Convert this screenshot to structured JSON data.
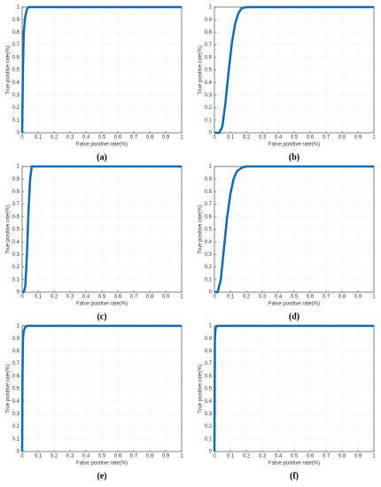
{
  "chart_data": [
    {
      "type": "line",
      "caption": "(a)",
      "xlabel": "False positive rate(%)",
      "ylabel": "True positive rate(%)",
      "color": "#0e6bb5",
      "x": [
        0,
        0.005,
        0.01,
        0.02,
        0.03,
        0.04,
        0.05,
        1
      ],
      "values": [
        0,
        0.5,
        0.8,
        0.93,
        0.98,
        1,
        1,
        1
      ],
      "xlim": [
        0,
        1
      ],
      "ylim": [
        0,
        1
      ],
      "xticks": [
        0,
        0.1,
        0.2,
        0.3,
        0.4,
        0.5,
        0.6,
        0.7,
        0.8,
        0.9,
        1
      ],
      "yticks": [
        0,
        0.1,
        0.2,
        0.3,
        0.4,
        0.5,
        0.6,
        0.7,
        0.8,
        0.9,
        1
      ],
      "grid": true
    },
    {
      "type": "line",
      "caption": "(b)",
      "xlabel": "False positive rate(%)",
      "ylabel": "True positive rate(%)",
      "color": "#0e6bb5",
      "x": [
        0,
        0.03,
        0.05,
        0.07,
        0.09,
        0.11,
        0.13,
        0.15,
        0.17,
        0.2,
        1
      ],
      "values": [
        0,
        0,
        0.05,
        0.25,
        0.5,
        0.72,
        0.87,
        0.95,
        0.99,
        1,
        1
      ],
      "xlim": [
        0,
        1
      ],
      "ylim": [
        0,
        1
      ],
      "xticks": [
        0,
        0.1,
        0.2,
        0.3,
        0.4,
        0.5,
        0.6,
        0.7,
        0.8,
        0.9,
        1
      ],
      "yticks": [
        0,
        0.1,
        0.2,
        0.3,
        0.4,
        0.5,
        0.6,
        0.7,
        0.8,
        0.9,
        1
      ],
      "grid": true
    },
    {
      "type": "line",
      "caption": "(c)",
      "xlabel": "False positive rate(%)",
      "ylabel": "True positive rate(%)",
      "color": "#0e6bb5",
      "x": [
        0,
        0.01,
        0.02,
        0.03,
        0.04,
        0.05,
        0.06,
        1
      ],
      "values": [
        0,
        0,
        0.05,
        0.3,
        0.65,
        0.9,
        1,
        1
      ],
      "xlim": [
        0,
        1
      ],
      "ylim": [
        0,
        1
      ],
      "xticks": [
        0,
        0.1,
        0.2,
        0.3,
        0.4,
        0.5,
        0.6,
        0.7,
        0.8,
        0.9,
        1
      ],
      "yticks": [
        0,
        0.1,
        0.2,
        0.3,
        0.4,
        0.5,
        0.6,
        0.7,
        0.8,
        0.9,
        1
      ],
      "grid": true
    },
    {
      "type": "line",
      "caption": "(d)",
      "xlabel": "False positive rate(%)",
      "ylabel": "True positive rate(%)",
      "color": "#0e6bb5",
      "x": [
        0,
        0.02,
        0.04,
        0.06,
        0.08,
        0.1,
        0.12,
        0.14,
        0.17,
        0.2,
        1
      ],
      "values": [
        0,
        0,
        0.1,
        0.35,
        0.6,
        0.78,
        0.9,
        0.96,
        0.99,
        1,
        1
      ],
      "xlim": [
        0,
        1
      ],
      "ylim": [
        0,
        1
      ],
      "xticks": [
        0,
        0.1,
        0.2,
        0.3,
        0.4,
        0.5,
        0.6,
        0.7,
        0.8,
        0.9,
        1
      ],
      "yticks": [
        0,
        0.1,
        0.2,
        0.3,
        0.4,
        0.5,
        0.6,
        0.7,
        0.8,
        0.9,
        1
      ],
      "grid": true
    },
    {
      "type": "line",
      "caption": "(e)",
      "xlabel": "False positive rate(%)",
      "ylabel": "True positive rate(%)",
      "color": "#0e6bb5",
      "x": [
        0,
        0.002,
        0.005,
        0.01,
        0.02,
        0.03,
        1
      ],
      "values": [
        0,
        0.6,
        0.9,
        0.96,
        0.99,
        1,
        1
      ],
      "xlim": [
        0,
        1
      ],
      "ylim": [
        0,
        1
      ],
      "xticks": [
        0,
        0.1,
        0.2,
        0.3,
        0.4,
        0.5,
        0.6,
        0.7,
        0.8,
        0.9,
        1
      ],
      "yticks": [
        0,
        0.1,
        0.2,
        0.3,
        0.4,
        0.5,
        0.6,
        0.7,
        0.8,
        0.9,
        1
      ],
      "grid": true
    },
    {
      "type": "line",
      "caption": "(f)",
      "xlabel": "False positive rate(%)",
      "ylabel": "True positive rate(%)",
      "color": "#0e6bb5",
      "x": [
        0,
        0.003,
        0.007,
        0.015,
        1
      ],
      "values": [
        0,
        0.9,
        0.98,
        1,
        1
      ],
      "xlim": [
        0,
        1
      ],
      "ylim": [
        0,
        1
      ],
      "xticks": [
        0,
        0.1,
        0.2,
        0.3,
        0.4,
        0.5,
        0.6,
        0.7,
        0.8,
        0.9,
        1
      ],
      "yticks": [
        0,
        0.1,
        0.2,
        0.3,
        0.4,
        0.5,
        0.6,
        0.7,
        0.8,
        0.9,
        1
      ],
      "grid": true
    }
  ]
}
